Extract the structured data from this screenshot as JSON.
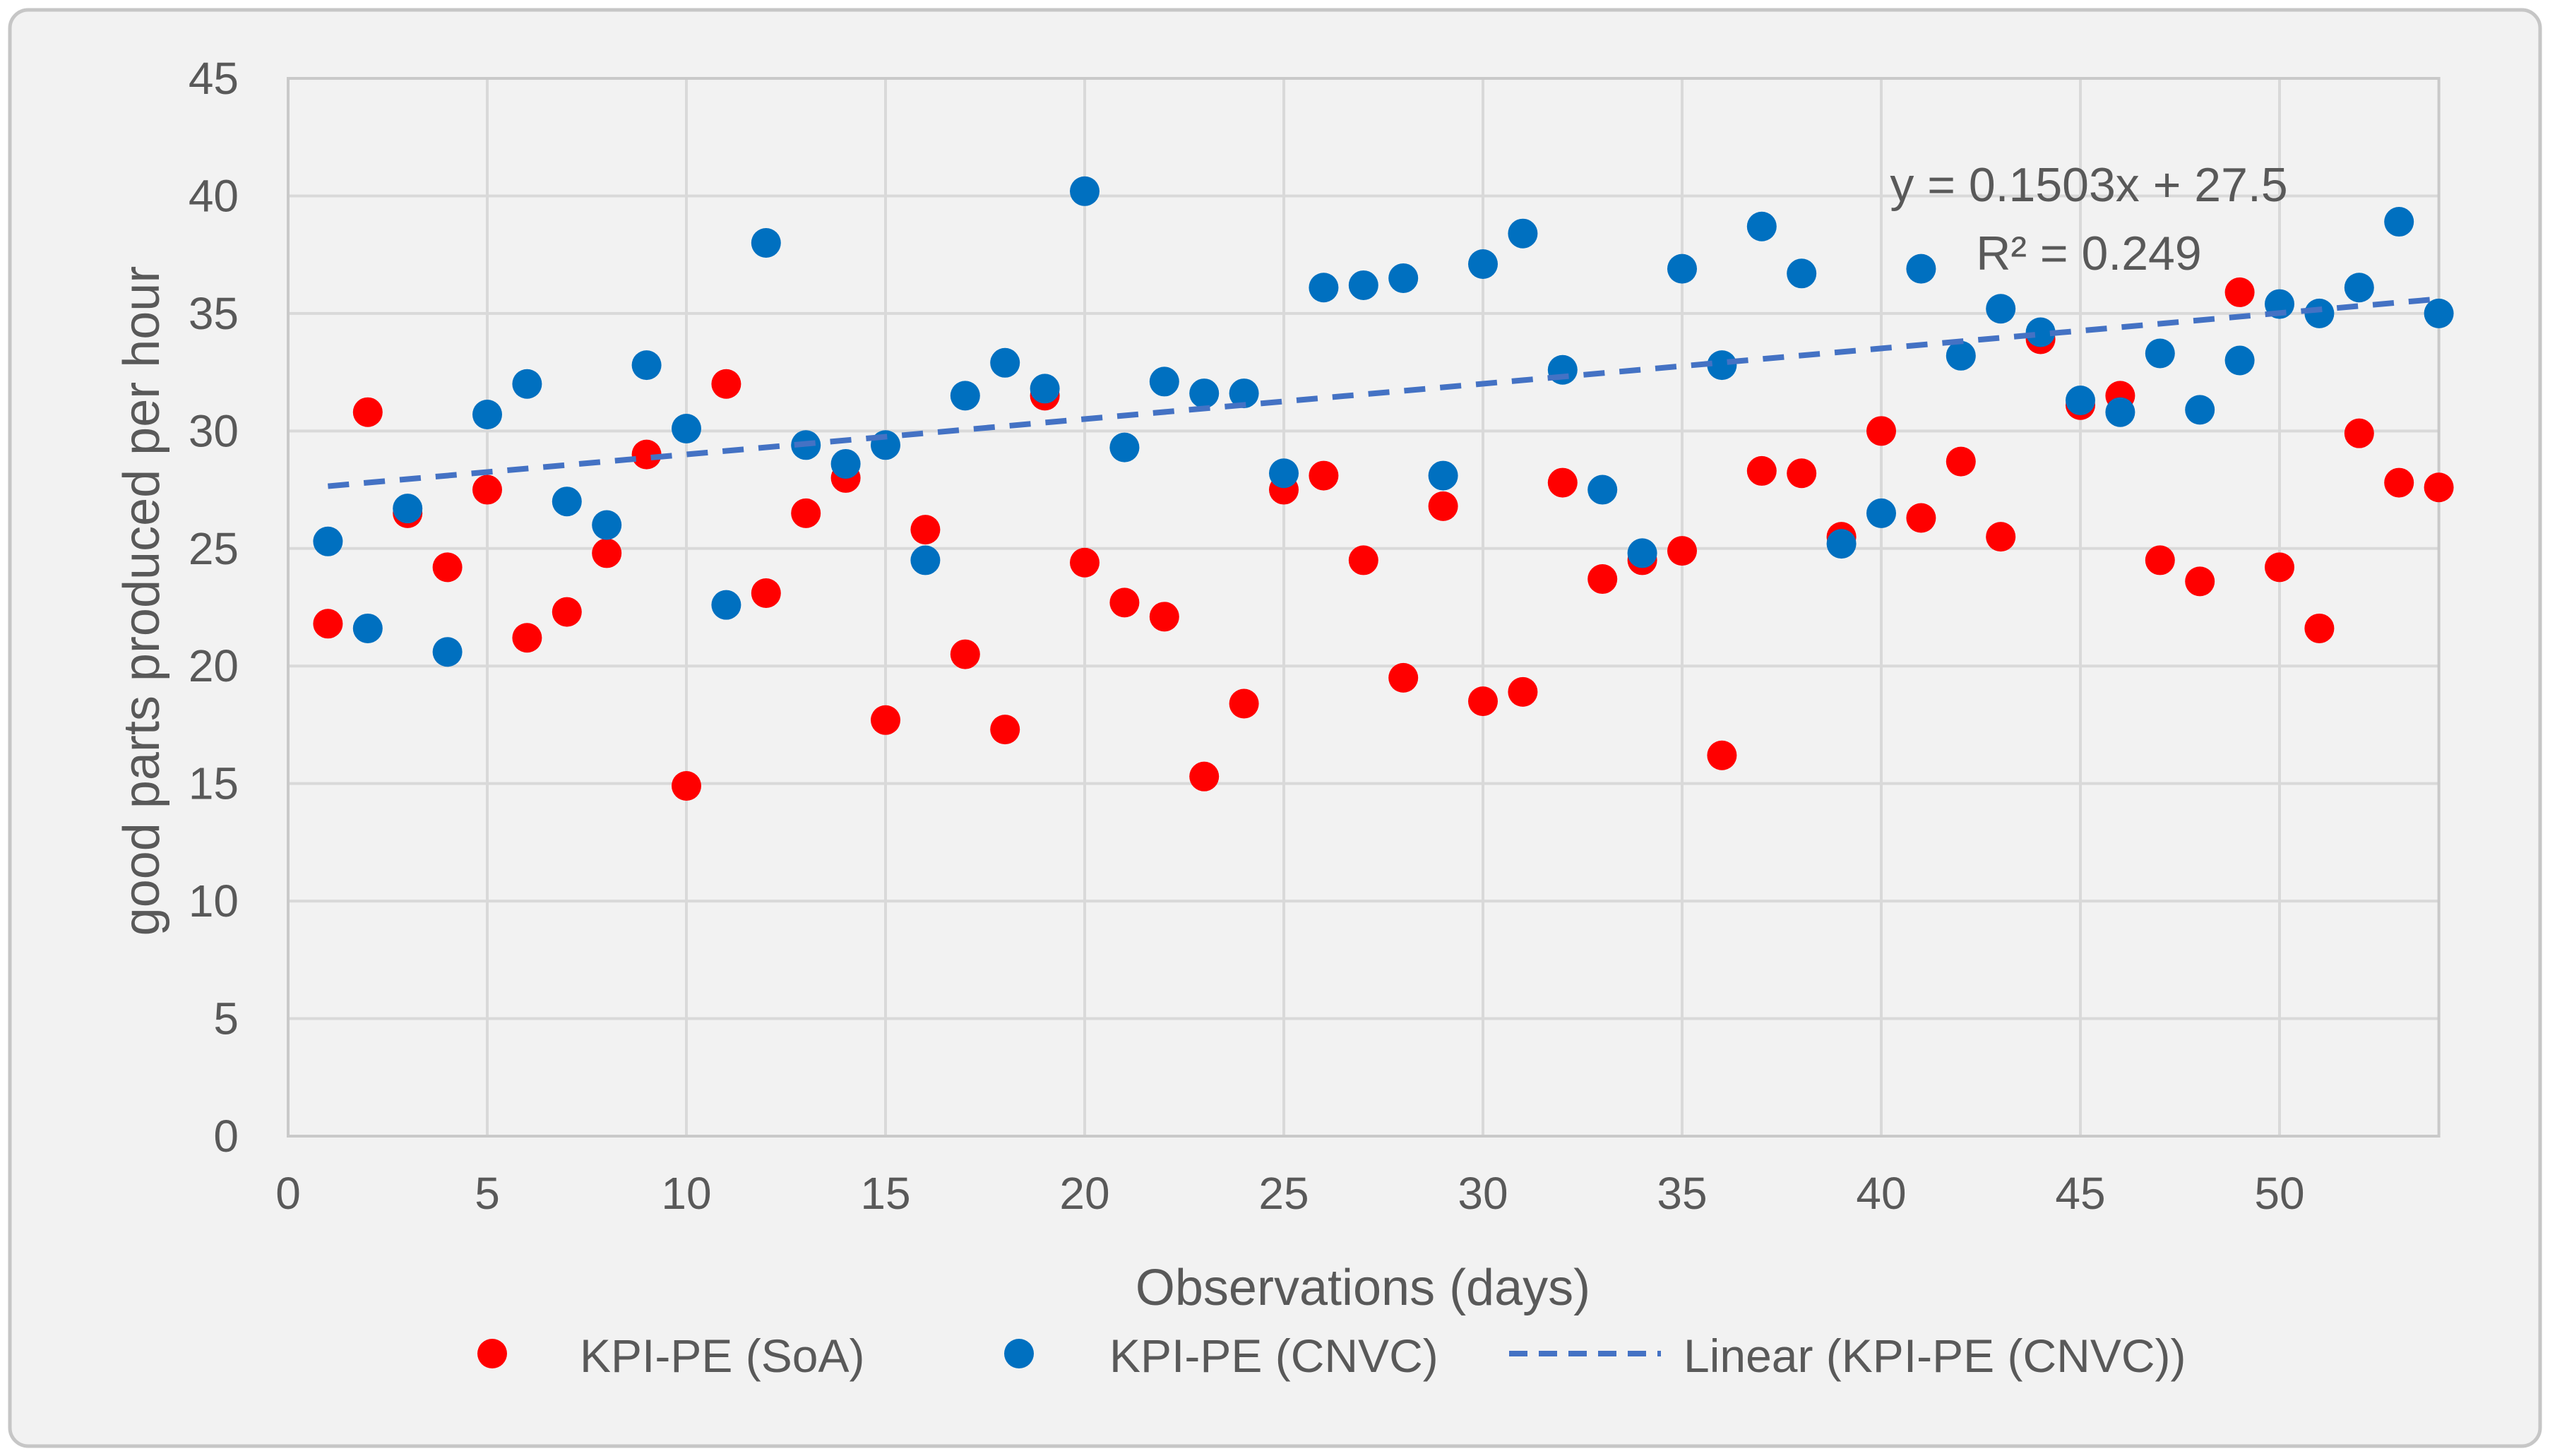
{
  "chart": {
    "equation_line1": "y = 0.1503x + 27.5",
    "equation_line2": "R² = 0.249",
    "colors": {
      "background": "#F2F2F2",
      "page": "#FFFFFF",
      "border": "#C6C6C6",
      "gridline": "#D9D9D9",
      "axis_line": "#C9C9C9",
      "text": "#595959",
      "soa_red": "#FF0000",
      "cnvc_blue": "#0070C0",
      "trendline_blue": "#4472C4"
    }
  },
  "chart_data": {
    "type": "scatter",
    "title": "",
    "xlabel": "Observations (days)",
    "ylabel": "good parts produced per hour",
    "xlim": [
      0,
      54
    ],
    "ylim": [
      0,
      45
    ],
    "x_ticks": [
      0,
      5,
      10,
      15,
      20,
      25,
      30,
      35,
      40,
      45,
      50
    ],
    "y_ticks": [
      0,
      5,
      10,
      15,
      20,
      25,
      30,
      35,
      40,
      45
    ],
    "grid": true,
    "legend_position": "bottom",
    "x": [
      1,
      2,
      3,
      4,
      5,
      6,
      7,
      8,
      9,
      10,
      11,
      12,
      13,
      14,
      15,
      16,
      17,
      18,
      19,
      20,
      21,
      22,
      23,
      24,
      25,
      26,
      27,
      28,
      29,
      30,
      31,
      32,
      33,
      34,
      35,
      36,
      37,
      38,
      39,
      40,
      41,
      42,
      43,
      44,
      45,
      46,
      47,
      48,
      49,
      50,
      51,
      52,
      53,
      54
    ],
    "series": [
      {
        "name": "KPI-PE (SoA)",
        "color": "#FF0000",
        "values": [
          21.8,
          30.8,
          26.5,
          24.2,
          27.5,
          21.2,
          22.3,
          24.8,
          29.0,
          14.9,
          32.0,
          23.1,
          26.5,
          28.0,
          17.7,
          25.8,
          20.5,
          17.3,
          31.5,
          24.4,
          22.7,
          22.1,
          15.3,
          18.4,
          27.5,
          28.1,
          24.5,
          19.5,
          26.8,
          18.5,
          18.9,
          27.8,
          23.7,
          24.5,
          24.9,
          16.2,
          28.3,
          28.2,
          25.5,
          30.0,
          26.3,
          28.7,
          25.5,
          33.9,
          31.1,
          31.5,
          24.5,
          23.6,
          35.9,
          24.2,
          21.6,
          29.9,
          27.8,
          27.6
        ]
      },
      {
        "name": "KPI-PE (CNVC)",
        "color": "#0070C0",
        "values": [
          25.3,
          21.6,
          26.7,
          20.6,
          30.7,
          32.0,
          27.0,
          26.0,
          32.8,
          30.1,
          22.6,
          38.0,
          29.4,
          28.6,
          29.4,
          24.5,
          31.5,
          32.9,
          31.8,
          40.2,
          29.3,
          32.1,
          31.6,
          31.6,
          28.2,
          36.1,
          36.2,
          36.5,
          28.1,
          37.1,
          38.4,
          32.6,
          27.5,
          24.8,
          36.9,
          32.8,
          38.7,
          36.7,
          25.2,
          26.5,
          36.9,
          33.2,
          35.2,
          34.2,
          31.3,
          30.8,
          33.3,
          30.9,
          33.0,
          35.4,
          35.0,
          36.1,
          38.9,
          35.0
        ]
      }
    ],
    "trendline": {
      "label": "Linear (KPI-PE (CNVC))",
      "applies_to": "KPI-PE (CNVC)",
      "slope": 0.1503,
      "intercept": 27.5,
      "r_squared": 0.249,
      "color": "#4472C4",
      "x_range": [
        1,
        54
      ]
    }
  }
}
